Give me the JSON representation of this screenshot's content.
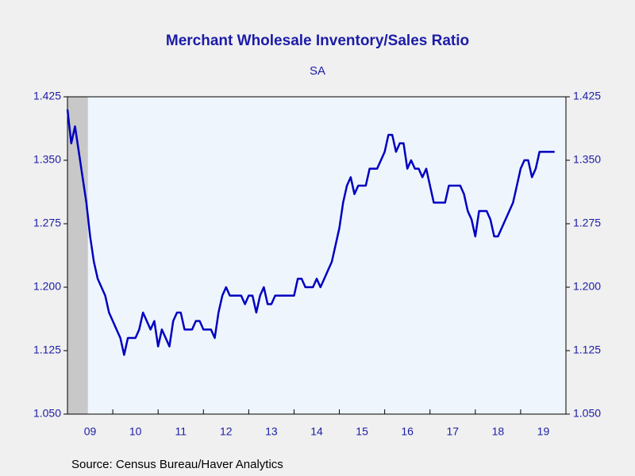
{
  "chart_data": {
    "type": "line",
    "title": "Merchant Wholesale Inventory/Sales Ratio",
    "subtitle": "SA",
    "source": "Source:  Census Bureau/Haver Analytics",
    "xlim": [
      2009,
      2020
    ],
    "xticks": [
      2009,
      2010,
      2011,
      2012,
      2013,
      2014,
      2015,
      2016,
      2017,
      2018,
      2019,
      2020
    ],
    "xticklabels": [
      {
        "value": 2009.5,
        "label": "09"
      },
      {
        "value": 2010.5,
        "label": "10"
      },
      {
        "value": 2011.5,
        "label": "11"
      },
      {
        "value": 2012.5,
        "label": "12"
      },
      {
        "value": 2013.5,
        "label": "13"
      },
      {
        "value": 2014.5,
        "label": "14"
      },
      {
        "value": 2015.5,
        "label": "15"
      },
      {
        "value": 2016.5,
        "label": "16"
      },
      {
        "value": 2017.5,
        "label": "17"
      },
      {
        "value": 2018.5,
        "label": "18"
      },
      {
        "value": 2019.5,
        "label": "19"
      }
    ],
    "ylim": [
      1.05,
      1.425
    ],
    "yticks": [
      {
        "value": 1.05,
        "label": "1.050"
      },
      {
        "value": 1.125,
        "label": "1.125"
      },
      {
        "value": 1.2,
        "label": "1.200"
      },
      {
        "value": 1.275,
        "label": "1.275"
      },
      {
        "value": 1.35,
        "label": "1.350"
      },
      {
        "value": 1.425,
        "label": "1.425"
      }
    ],
    "recession": [
      2009,
      2009.45
    ],
    "recession_color": "#c8c8c8",
    "plot_background": "#eef5fd",
    "x": [
      2009,
      2009.083,
      2009.167,
      2009.25,
      2009.333,
      2009.417,
      2009.5,
      2009.583,
      2009.667,
      2009.75,
      2009.833,
      2009.917,
      2010,
      2010.083,
      2010.167,
      2010.25,
      2010.333,
      2010.417,
      2010.5,
      2010.583,
      2010.667,
      2010.75,
      2010.833,
      2010.917,
      2011,
      2011.083,
      2011.167,
      2011.25,
      2011.333,
      2011.417,
      2011.5,
      2011.583,
      2011.667,
      2011.75,
      2011.833,
      2011.917,
      2012,
      2012.083,
      2012.167,
      2012.25,
      2012.333,
      2012.417,
      2012.5,
      2012.583,
      2012.667,
      2012.75,
      2012.833,
      2012.917,
      2013,
      2013.083,
      2013.167,
      2013.25,
      2013.333,
      2013.417,
      2013.5,
      2013.583,
      2013.667,
      2013.75,
      2013.833,
      2013.917,
      2014,
      2014.083,
      2014.167,
      2014.25,
      2014.333,
      2014.417,
      2014.5,
      2014.583,
      2014.667,
      2014.75,
      2014.833,
      2014.917,
      2015,
      2015.083,
      2015.167,
      2015.25,
      2015.333,
      2015.417,
      2015.5,
      2015.583,
      2015.667,
      2015.75,
      2015.833,
      2015.917,
      2016,
      2016.083,
      2016.167,
      2016.25,
      2016.333,
      2016.417,
      2016.5,
      2016.583,
      2016.667,
      2016.75,
      2016.833,
      2016.917,
      2017,
      2017.083,
      2017.167,
      2017.25,
      2017.333,
      2017.417,
      2017.5,
      2017.583,
      2017.667,
      2017.75,
      2017.833,
      2017.917,
      2018,
      2018.083,
      2018.167,
      2018.25,
      2018.333,
      2018.417,
      2018.5,
      2018.583,
      2018.667,
      2018.75,
      2018.833,
      2018.917,
      2019,
      2019.083,
      2019.167,
      2019.25,
      2019.333,
      2019.417,
      2019.5,
      2019.583,
      2019.667,
      2019.75
    ],
    "series": [
      {
        "name": "Inventory/Sales Ratio",
        "color": "#0000c0",
        "values": [
          1.41,
          1.37,
          1.39,
          1.36,
          1.33,
          1.3,
          1.26,
          1.23,
          1.21,
          1.2,
          1.19,
          1.17,
          1.16,
          1.15,
          1.14,
          1.12,
          1.14,
          1.14,
          1.14,
          1.15,
          1.17,
          1.16,
          1.15,
          1.16,
          1.13,
          1.15,
          1.14,
          1.13,
          1.16,
          1.17,
          1.17,
          1.15,
          1.15,
          1.15,
          1.16,
          1.16,
          1.15,
          1.15,
          1.15,
          1.14,
          1.17,
          1.19,
          1.2,
          1.19,
          1.19,
          1.19,
          1.19,
          1.18,
          1.19,
          1.19,
          1.17,
          1.19,
          1.2,
          1.18,
          1.18,
          1.19,
          1.19,
          1.19,
          1.19,
          1.19,
          1.19,
          1.21,
          1.21,
          1.2,
          1.2,
          1.2,
          1.21,
          1.2,
          1.21,
          1.22,
          1.23,
          1.25,
          1.27,
          1.3,
          1.32,
          1.33,
          1.31,
          1.32,
          1.32,
          1.32,
          1.34,
          1.34,
          1.34,
          1.35,
          1.36,
          1.38,
          1.38,
          1.36,
          1.37,
          1.37,
          1.34,
          1.35,
          1.34,
          1.34,
          1.33,
          1.34,
          1.32,
          1.3,
          1.3,
          1.3,
          1.3,
          1.32,
          1.32,
          1.32,
          1.32,
          1.31,
          1.29,
          1.28,
          1.26,
          1.29,
          1.29,
          1.29,
          1.28,
          1.26,
          1.26,
          1.27,
          1.28,
          1.29,
          1.3,
          1.32,
          1.34,
          1.35,
          1.35,
          1.33,
          1.34,
          1.36,
          1.36,
          1.36,
          1.36,
          1.36
        ]
      }
    ]
  }
}
